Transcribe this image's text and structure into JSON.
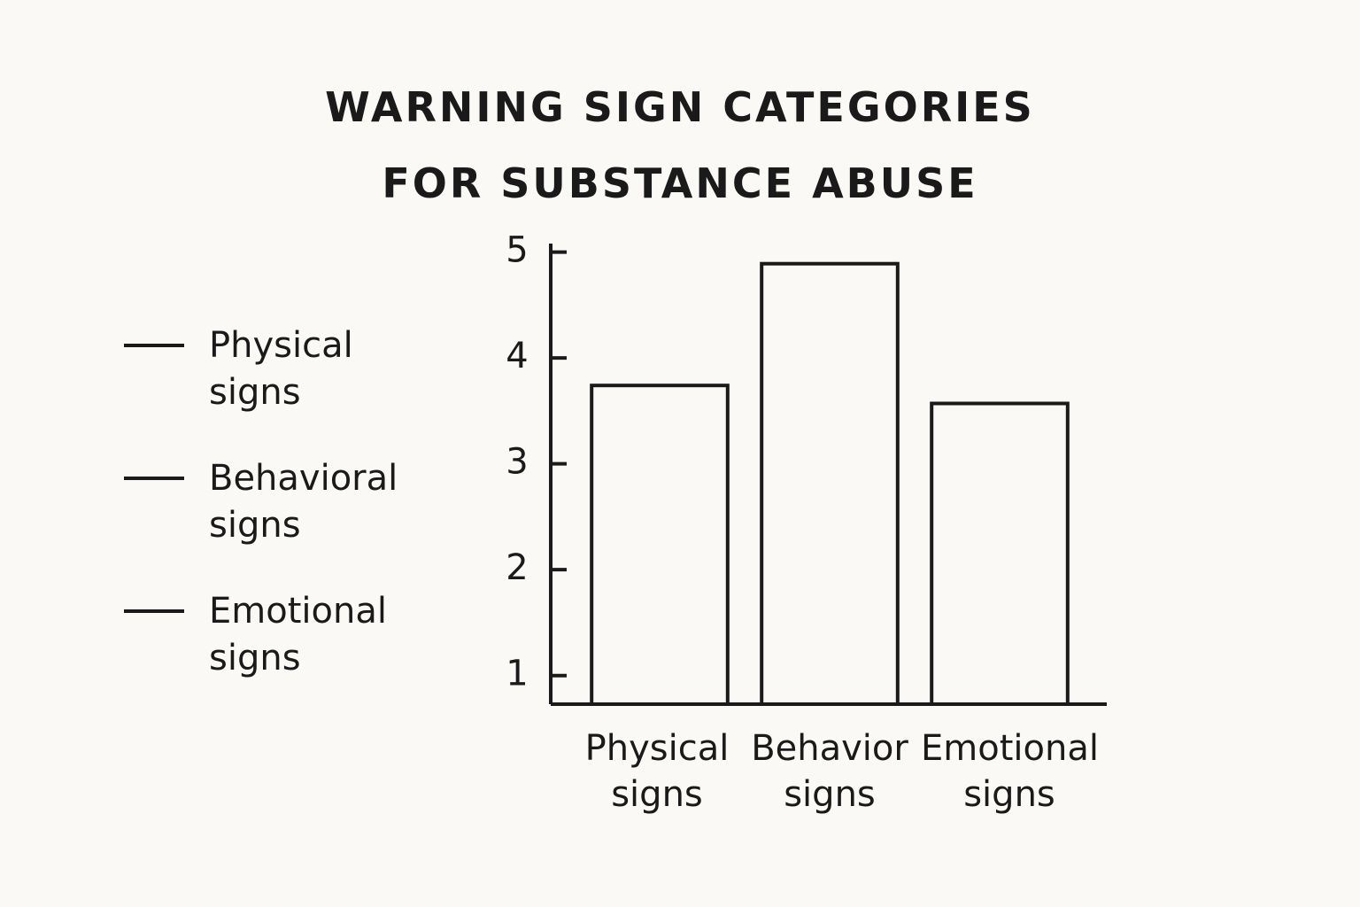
{
  "chart_data": {
    "type": "bar",
    "title": "WARNING SIGN CATEGORIES FOR SUBSTANCE ABUSE",
    "categories": [
      "Physical signs",
      "Behavior signs",
      "Emotional signs"
    ],
    "values": [
      3.74,
      4.89,
      3.57
    ],
    "color": "#1a1a1a",
    "legend": [
      "Physical signs",
      "Behavioral signs",
      "Emotional signs"
    ],
    "ylim": [
      0.73,
      5.08
    ],
    "yticks": [
      1,
      2,
      3,
      4,
      5
    ],
    "grid": false
  }
}
